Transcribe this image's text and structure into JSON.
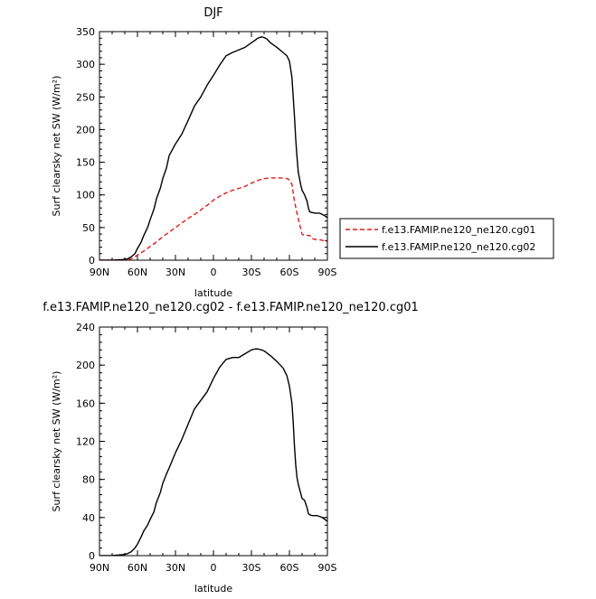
{
  "chart_data": [
    {
      "type": "line",
      "title": "DJF",
      "xlabel": "latitude",
      "ylabel": "Surf clearsky net SW (W/m²)",
      "xlim": [
        90,
        -90
      ],
      "ylim": [
        0,
        350
      ],
      "x_ticks": [
        90,
        60,
        30,
        0,
        -30,
        -60,
        -90
      ],
      "x_tick_labels": [
        "90N",
        "60N",
        "30N",
        "0",
        "30S",
        "60S",
        "90S"
      ],
      "y_ticks": [
        0,
        50,
        100,
        150,
        200,
        250,
        300,
        350
      ],
      "y_tick_labels": [
        "0",
        "50",
        "100",
        "150",
        "200",
        "250",
        "300",
        "350"
      ],
      "legend_position": "right",
      "grid": false,
      "series": [
        {
          "name": "f.e13.FAMIP.ne120_ne120.cg01",
          "color": "#e31a1c",
          "dash": "dashed",
          "x": [
            90,
            80,
            72,
            68,
            65,
            62,
            60,
            55,
            50,
            45,
            40,
            35,
            30,
            25,
            20,
            15,
            10,
            5,
            0,
            -5,
            -10,
            -15,
            -20,
            -25,
            -30,
            -35,
            -40,
            -45,
            -50,
            -55,
            -58,
            -60,
            -62,
            -64,
            -66,
            -68,
            -70,
            -72,
            -74,
            -76,
            -78,
            -80,
            -85,
            -88,
            -90
          ],
          "values": [
            0,
            0,
            0,
            1,
            2,
            5,
            8,
            14,
            21,
            28,
            36,
            43,
            50,
            57,
            64,
            70,
            77,
            84,
            92,
            98,
            103,
            107,
            110,
            113,
            118,
            122,
            125,
            126,
            126,
            126,
            125,
            123,
            116,
            90,
            72,
            55,
            40,
            38,
            38,
            38,
            33,
            32,
            31,
            29,
            28
          ]
        },
        {
          "name": "f.e13.FAMIP.ne120_ne120.cg02",
          "color": "#000000",
          "dash": "solid",
          "x": [
            90,
            80,
            72,
            68,
            65,
            62,
            60,
            57,
            55,
            52,
            50,
            47,
            45,
            42,
            40,
            37,
            35,
            30,
            25,
            20,
            15,
            10,
            5,
            0,
            -5,
            -10,
            -15,
            -20,
            -25,
            -30,
            -33,
            -35,
            -38,
            -40,
            -42,
            -45,
            -50,
            -55,
            -58,
            -60,
            -62,
            -63,
            -64,
            -65,
            -66,
            -67,
            -68,
            -69,
            -70,
            -72,
            -74,
            -75,
            -76,
            -78,
            -80,
            -82,
            -84,
            -86,
            -88,
            -90
          ],
          "values": [
            0,
            0,
            1,
            2,
            5,
            10,
            18,
            28,
            38,
            50,
            62,
            78,
            94,
            110,
            125,
            142,
            160,
            178,
            193,
            214,
            236,
            250,
            268,
            283,
            299,
            313,
            318,
            322,
            326,
            333,
            337,
            340,
            342,
            341,
            339,
            333,
            326,
            318,
            313,
            305,
            280,
            250,
            220,
            185,
            158,
            135,
            125,
            115,
            107,
            100,
            90,
            80,
            74,
            73,
            72,
            72,
            72,
            70,
            68,
            65
          ]
        }
      ]
    },
    {
      "type": "line",
      "title": "f.e13.FAMIP.ne120_ne120.cg02 - f.e13.FAMIP.ne120_ne120.cg01",
      "xlabel": "latitude",
      "ylabel": "Surf clearsky net SW (W/m²)",
      "xlim": [
        90,
        -90
      ],
      "ylim": [
        0,
        240
      ],
      "x_ticks": [
        90,
        60,
        30,
        0,
        -30,
        -60,
        -90
      ],
      "x_tick_labels": [
        "90N",
        "60N",
        "30N",
        "0",
        "30S",
        "60S",
        "90S"
      ],
      "y_ticks": [
        0,
        40,
        80,
        120,
        160,
        200,
        240
      ],
      "y_tick_labels": [
        "0",
        "40",
        "80",
        "120",
        "160",
        "200",
        "240"
      ],
      "grid": false,
      "series": [
        {
          "color": "#000000",
          "dash": "solid",
          "x": [
            90,
            80,
            72,
            68,
            65,
            62,
            60,
            57,
            55,
            52,
            50,
            47,
            45,
            42,
            40,
            37,
            35,
            30,
            25,
            20,
            15,
            10,
            5,
            0,
            -5,
            -10,
            -15,
            -20,
            -25,
            -30,
            -33,
            -35,
            -38,
            -40,
            -42,
            -45,
            -50,
            -55,
            -58,
            -60,
            -62,
            -63,
            -64,
            -65,
            -66,
            -67,
            -68,
            -69,
            -70,
            -72,
            -74,
            -75,
            -76,
            -78,
            -80,
            -82,
            -84,
            -86,
            -88,
            -90
          ],
          "values": [
            0,
            0,
            1,
            2,
            4,
            8,
            12,
            20,
            26,
            32,
            38,
            46,
            56,
            66,
            76,
            86,
            92,
            108,
            122,
            138,
            154,
            163,
            172,
            186,
            198,
            206,
            208,
            208,
            212,
            216,
            217,
            217,
            216,
            215,
            213,
            210,
            204,
            197,
            189,
            178,
            160,
            140,
            115,
            95,
            82,
            75,
            70,
            65,
            60,
            58,
            50,
            44,
            43,
            42,
            42,
            42,
            41,
            40,
            38,
            36
          ]
        }
      ]
    }
  ]
}
